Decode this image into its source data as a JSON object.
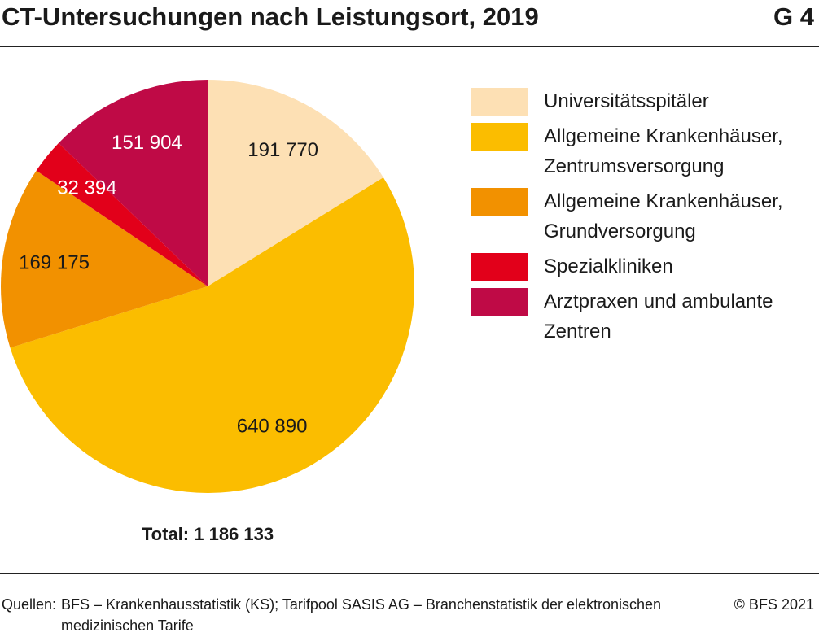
{
  "header": {
    "title": "CT-Untersuchungen nach Leistungsort, 2019",
    "code": "G 4"
  },
  "chart_data": {
    "type": "pie",
    "categories": [
      "Universitätsspitäler",
      "Allgemeine Krankenhäuser, Zentrumsversorgung",
      "Allgemeine Krankenhäuser, Grundversorgung",
      "Spezialkliniken",
      "Arztpraxen und ambulante Zentren"
    ],
    "values": [
      191770,
      640890,
      169175,
      32394,
      151904
    ],
    "value_labels": [
      "191 770",
      "640 890",
      "169 175",
      "32 394",
      "151 904"
    ],
    "colors": [
      "#fde0b4",
      "#fbbd00",
      "#f29100",
      "#e2001a",
      "#bf0a46"
    ],
    "total_label": "Total: 1 186 133"
  },
  "footer": {
    "source_label": "Quellen:",
    "source": "BFS – Krankenhausstatistik (KS); Tarifpool SASIS AG – Branchenstatistik der elektronischen medizinischen Tarife",
    "copyright": "© BFS 2021"
  }
}
